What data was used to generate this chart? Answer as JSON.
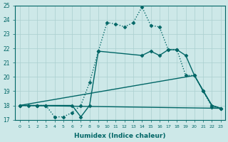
{
  "xlabel": "Humidex (Indice chaleur)",
  "xlim": [
    -0.5,
    23.5
  ],
  "ylim": [
    17,
    25
  ],
  "yticks": [
    17,
    18,
    19,
    20,
    21,
    22,
    23,
    24,
    25
  ],
  "xticks": [
    0,
    1,
    2,
    3,
    4,
    5,
    6,
    7,
    8,
    9,
    10,
    11,
    12,
    13,
    14,
    15,
    16,
    17,
    18,
    19,
    20,
    21,
    22,
    23
  ],
  "bg_color": "#cde8e8",
  "line_color": "#006666",
  "grid_color": "#aacfcf",
  "lines": [
    {
      "x": [
        0,
        1,
        2,
        3,
        4,
        5,
        6,
        7,
        8,
        9,
        10,
        11,
        12,
        13,
        14,
        15,
        16,
        17,
        18,
        19,
        20,
        21,
        22,
        23
      ],
      "y": [
        18,
        18,
        18,
        18,
        17.2,
        17.2,
        17.5,
        18,
        19.6,
        21.8,
        23.8,
        23.7,
        23.5,
        23.8,
        24.9,
        23.6,
        23.5,
        21.9,
        21.9,
        20.1,
        20.1,
        19.0,
        17.9,
        17.8
      ],
      "style": ":",
      "marker": "D",
      "markersize": 2.5,
      "linewidth": 1.0
    },
    {
      "x": [
        0,
        2,
        3,
        6,
        7,
        8,
        9,
        14,
        15,
        16,
        17,
        18,
        19,
        20,
        21,
        22,
        23
      ],
      "y": [
        18,
        18,
        18,
        18,
        17.2,
        18.0,
        21.8,
        21.5,
        21.8,
        21.5,
        21.9,
        21.9,
        21.5,
        20.1,
        19.0,
        18.0,
        17.8
      ],
      "style": "-",
      "marker": "D",
      "markersize": 2.5,
      "linewidth": 1.0
    },
    {
      "x": [
        0,
        23
      ],
      "y": [
        18,
        17.8
      ],
      "style": "-",
      "marker": null,
      "linewidth": 1.0
    },
    {
      "x": [
        0,
        20,
        22,
        23
      ],
      "y": [
        18,
        20.1,
        18.0,
        17.8
      ],
      "style": "-",
      "marker": null,
      "linewidth": 1.0
    }
  ]
}
